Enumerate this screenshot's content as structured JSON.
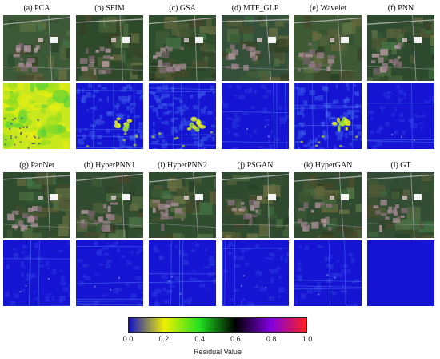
{
  "panels": [
    {
      "label": "(a) PCA",
      "residual_level": "high"
    },
    {
      "label": "(b) SFIM",
      "residual_level": "medium"
    },
    {
      "label": "(c) GSA",
      "residual_level": "medium"
    },
    {
      "label": "(d) MTF_GLP",
      "residual_level": "low"
    },
    {
      "label": "(e) Wavelet",
      "residual_level": "medium"
    },
    {
      "label": "(f) PNN",
      "residual_level": "low"
    },
    {
      "label": "(g) PanNet",
      "residual_level": "low"
    },
    {
      "label": "(h) HyperPNN1",
      "residual_level": "low"
    },
    {
      "label": "(i) HyperPNN2",
      "residual_level": "low"
    },
    {
      "label": "(j) PSGAN",
      "residual_level": "low"
    },
    {
      "label": "(k) HyperGAN",
      "residual_level": "low"
    },
    {
      "label": "(l) GT",
      "residual_level": "zero"
    }
  ],
  "colorbar": {
    "ticks": [
      "0.0",
      "0.2",
      "0.4",
      "0.6",
      "0.8",
      "1.0"
    ],
    "label": "Residual Value",
    "colors": [
      "#1010c8",
      "#f0f000",
      "#20e020",
      "#000000",
      "#8000e0",
      "#ff2020"
    ]
  }
}
